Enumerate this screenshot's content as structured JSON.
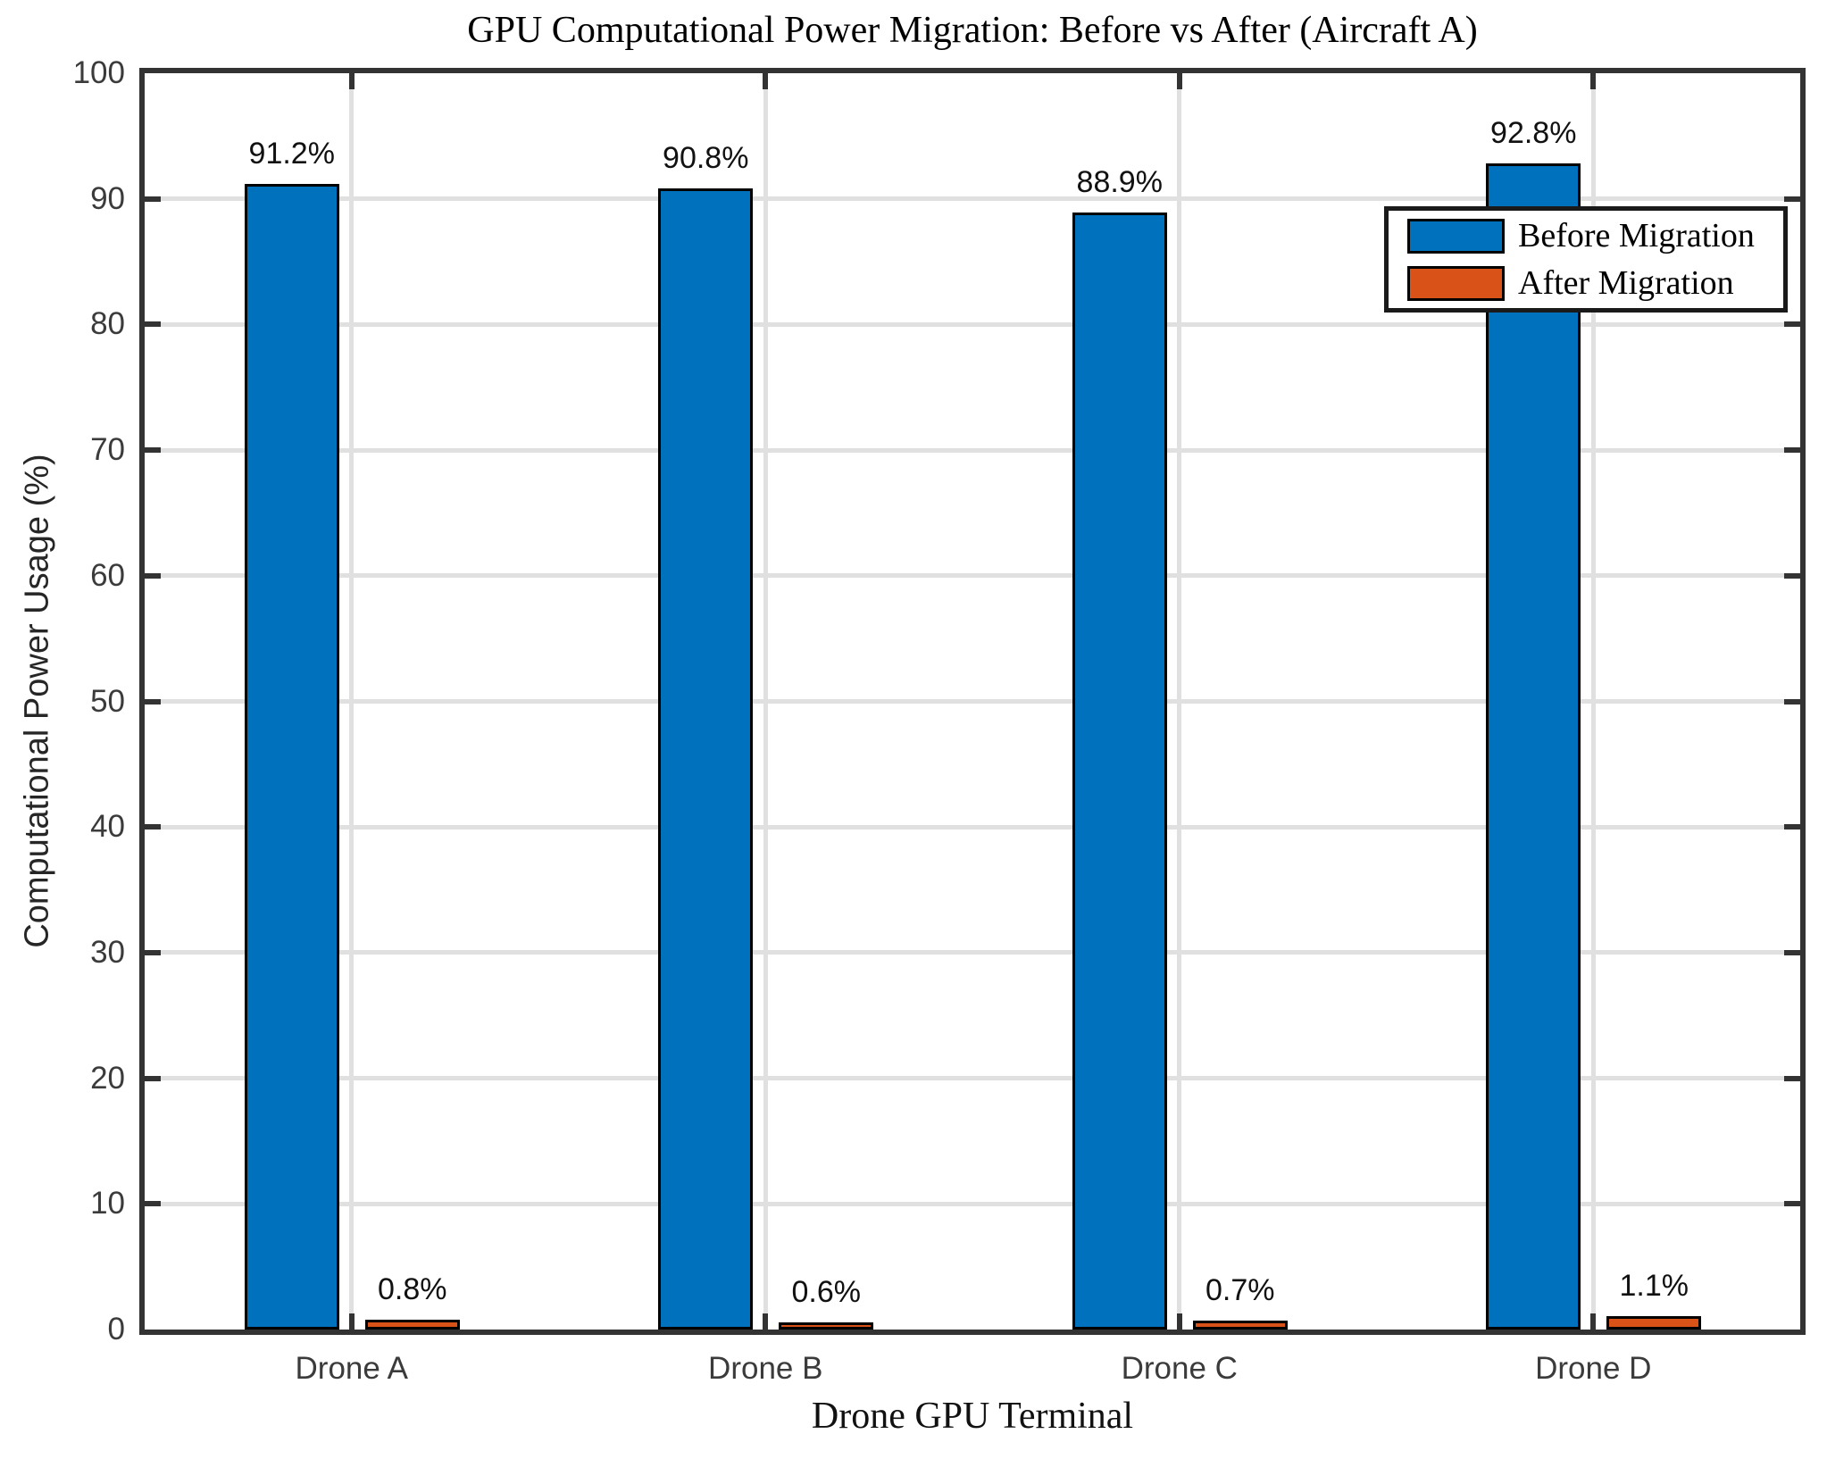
{
  "chart_data": {
    "type": "bar",
    "title": "GPU Computational Power Migration: Before vs After (Aircraft A)",
    "xlabel": "Drone GPU Terminal",
    "ylabel": "Computational Power Usage (%)",
    "categories": [
      "Drone A",
      "Drone B",
      "Drone C",
      "Drone D"
    ],
    "series": [
      {
        "name": "Before Migration",
        "color": "#0072BD",
        "values": [
          91.2,
          90.8,
          88.9,
          92.8
        ],
        "value_labels": [
          "91.2%",
          "90.8%",
          "88.9%",
          "92.8%"
        ]
      },
      {
        "name": "After Migration",
        "color": "#D95319",
        "values": [
          0.8,
          0.6,
          0.7,
          1.1
        ],
        "value_labels": [
          "0.8%",
          "0.6%",
          "0.7%",
          "1.1%"
        ]
      }
    ],
    "ylim": [
      0,
      100
    ],
    "yticks": [
      0,
      10,
      20,
      30,
      40,
      50,
      60,
      70,
      80,
      90,
      100
    ],
    "grid": true,
    "legend_position": "upper right",
    "colors": {
      "axis_frame": "#333333",
      "gridline": "#E0E0E0",
      "bar_edge": "#000000",
      "tick_label": "#3B3B3B",
      "background": "#FFFFFF"
    }
  }
}
